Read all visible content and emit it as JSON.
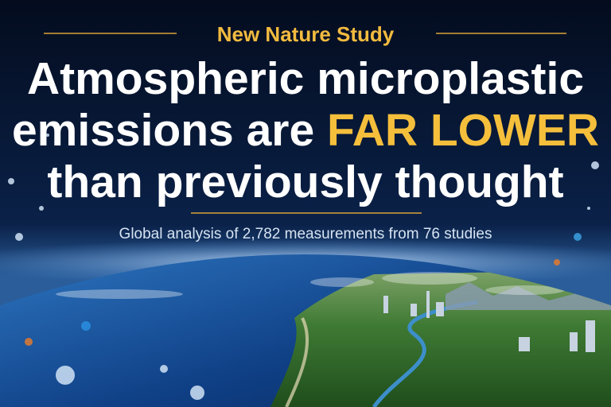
{
  "kicker": "New Nature Study",
  "headline": {
    "line1": "Atmospheric microplastic",
    "line2": "emissions are",
    "highlight": "FAR LOWER",
    "line3": "than previously thought"
  },
  "subtitle": "Global analysis of 2,782 measurements from 76 studies"
}
